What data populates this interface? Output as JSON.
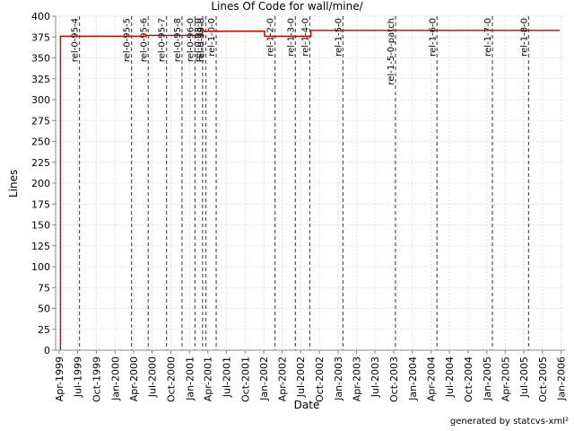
{
  "chart_data": {
    "type": "line",
    "title": "Lines Of Code for wall/mine/",
    "xlabel": "Date",
    "ylabel": "Lines",
    "xlim": [
      "1999-03-15",
      "2006-01-20"
    ],
    "ylim": [
      0,
      400
    ],
    "y_ticks": [
      0,
      25,
      50,
      75,
      100,
      125,
      150,
      175,
      200,
      225,
      250,
      275,
      300,
      325,
      350,
      375,
      400
    ],
    "x_ticks": [
      {
        "date": "1999-04-01",
        "label": "Apr-1999"
      },
      {
        "date": "1999-07-01",
        "label": "Jul-1999"
      },
      {
        "date": "1999-10-01",
        "label": "Oct-1999"
      },
      {
        "date": "2000-01-01",
        "label": "Jan-2000"
      },
      {
        "date": "2000-04-01",
        "label": "Apr-2000"
      },
      {
        "date": "2000-07-01",
        "label": "Jul-2000"
      },
      {
        "date": "2000-10-01",
        "label": "Oct-2000"
      },
      {
        "date": "2001-01-01",
        "label": "Jan-2001"
      },
      {
        "date": "2001-04-01",
        "label": "Apr-2001"
      },
      {
        "date": "2001-07-01",
        "label": "Jul-2001"
      },
      {
        "date": "2001-10-01",
        "label": "Oct-2001"
      },
      {
        "date": "2002-01-01",
        "label": "Jan-2002"
      },
      {
        "date": "2002-04-01",
        "label": "Apr-2002"
      },
      {
        "date": "2002-07-01",
        "label": "Jul-2002"
      },
      {
        "date": "2002-10-01",
        "label": "Oct-2002"
      },
      {
        "date": "2003-01-01",
        "label": "Jan-2003"
      },
      {
        "date": "2003-04-01",
        "label": "Apr-2003"
      },
      {
        "date": "2003-07-01",
        "label": "Jul-2003"
      },
      {
        "date": "2003-10-01",
        "label": "Oct-2003"
      },
      {
        "date": "2004-01-01",
        "label": "Jan-2004"
      },
      {
        "date": "2004-04-01",
        "label": "Apr-2004"
      },
      {
        "date": "2004-07-01",
        "label": "Jul-2004"
      },
      {
        "date": "2004-10-01",
        "label": "Oct-2004"
      },
      {
        "date": "2005-01-01",
        "label": "Jan-2005"
      },
      {
        "date": "2005-04-01",
        "label": "Apr-2005"
      },
      {
        "date": "2005-07-01",
        "label": "Jul-2005"
      },
      {
        "date": "2005-10-01",
        "label": "Oct-2005"
      },
      {
        "date": "2006-01-01",
        "label": "Jan-2006"
      }
    ],
    "grid": true,
    "series": [
      {
        "color": "#cc0000",
        "step": true,
        "points": [
          {
            "x": "1999-04-08",
            "y": 0
          },
          {
            "x": "1999-04-08",
            "y": 376
          },
          {
            "x": "2000-06-01",
            "y": 377
          },
          {
            "x": "2001-03-05",
            "y": 382
          },
          {
            "x": "2002-01-05",
            "y": 376
          },
          {
            "x": "2002-08-20",
            "y": 383
          },
          {
            "x": "2005-12-25",
            "y": 383
          }
        ]
      }
    ],
    "markers": [
      {
        "date": "1999-07-10",
        "label": "rel-0-95-4"
      },
      {
        "date": "2000-03-22",
        "label": "rel-0-95-5"
      },
      {
        "date": "2000-06-12",
        "label": "rel-0-95-6"
      },
      {
        "date": "2000-09-10",
        "label": "rel-0-95-7"
      },
      {
        "date": "2000-11-25",
        "label": "rel-0-95-8"
      },
      {
        "date": "2001-01-28",
        "label": "rel-0-96-0"
      },
      {
        "date": "2001-03-06",
        "label": "rel-0-98-0"
      },
      {
        "date": "2001-03-22",
        "label": "rel-0-99-0"
      },
      {
        "date": "2001-05-12",
        "label": "rel-1-0-0"
      },
      {
        "date": "2002-02-25",
        "label": "rel-1-2-0"
      },
      {
        "date": "2002-06-05",
        "label": "rel-1-3-0"
      },
      {
        "date": "2002-08-15",
        "label": "rel-1-4-0"
      },
      {
        "date": "2003-01-25",
        "label": "rel-1-5-0"
      },
      {
        "date": "2003-10-10",
        "label": "rel-1-5-0-patch"
      },
      {
        "date": "2004-05-01",
        "label": "rel-1-6-0"
      },
      {
        "date": "2005-01-28",
        "label": "rel-1-7-0"
      },
      {
        "date": "2005-07-25",
        "label": "rel-1-8-0"
      }
    ]
  },
  "footer": "generated by statcvs-xml²"
}
